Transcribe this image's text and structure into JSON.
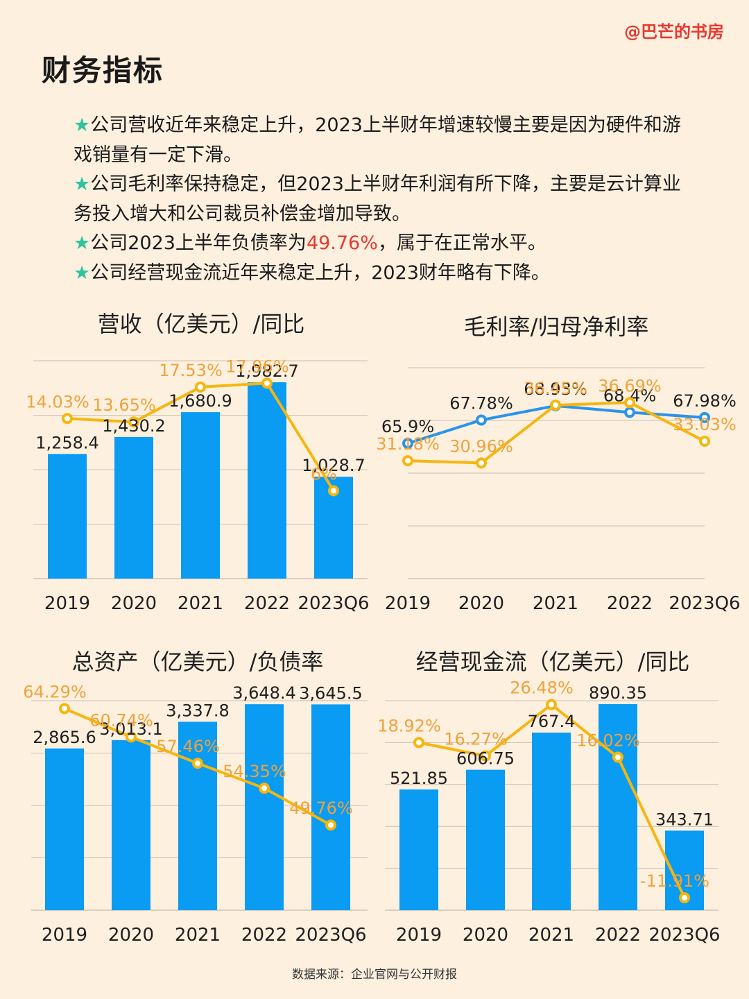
{
  "watermark": "@巴芒的书房",
  "title": "财务指标",
  "bullets": [
    {
      "star": "★",
      "pre": "公司营收近年来稳定上升，2023上半财年增速较慢主要是因为硬件和游戏销量有一定下滑。",
      "highlight": "",
      "post": ""
    },
    {
      "star": "★",
      "pre": "公司毛利率保持稳定，但2023上半财年利润有所下降，主要是云计算业务投入增大和公司裁员补偿金增加导致。",
      "highlight": "",
      "post": ""
    },
    {
      "star": "★",
      "pre": "公司2023上半年负债率为",
      "highlight": "49.76%",
      "post": "，属于在正常水平。"
    },
    {
      "star": "★",
      "pre": "公司经营现金流近年来稳定上升，2023财年略有下降。",
      "highlight": "",
      "post": ""
    }
  ],
  "colors": {
    "bar": "#0a9bf2",
    "line": "#f5b60f",
    "line_label": "#f0a23a",
    "blue_line": "#2b93ea",
    "grid": "#c9c0b4",
    "accent": "#e8382f"
  },
  "source": "数据来源：企业官网与公开财报",
  "chart_data": [
    {
      "type": "bar",
      "title": "营收（亿美元）/同比",
      "categories": [
        "2019",
        "2020",
        "2021",
        "2022",
        "2023Q6"
      ],
      "series": [
        {
          "kind": "bar",
          "values": [
            1258.4,
            1430.2,
            1680.9,
            1982.7,
            1028.7
          ],
          "labels": [
            "1,258.4",
            "1,430.2",
            "1,680.9",
            "1,982.7",
            "1,028.7"
          ]
        },
        {
          "kind": "line",
          "values": [
            14.03,
            13.65,
            17.53,
            17.96,
            6
          ],
          "labels": [
            "14.03%",
            "13.65%",
            "17.53%",
            "17.96%",
            "6%"
          ]
        }
      ]
    },
    {
      "type": "line",
      "title": "毛利率/归母净利率",
      "categories": [
        "2019",
        "2020",
        "2021",
        "2022",
        "2023Q6"
      ],
      "series": [
        {
          "kind": "line",
          "color": "#2b93ea",
          "values": [
            65.9,
            67.78,
            68.93,
            68.4,
            67.98
          ],
          "labels": [
            "65.9%",
            "67.78%",
            "68.93%",
            "68.4%",
            "67.98%"
          ]
        },
        {
          "kind": "line",
          "color": "#f5b60f",
          "values": [
            31.18,
            30.96,
            36.45,
            36.69,
            33.03
          ],
          "labels": [
            "31.18%",
            "30.96%",
            "36.45%",
            "36.69%",
            "33.03%"
          ]
        }
      ]
    },
    {
      "type": "bar",
      "title": "总资产（亿美元）/负债率",
      "categories": [
        "2019",
        "2020",
        "2021",
        "2022",
        "2023Q6"
      ],
      "series": [
        {
          "kind": "bar",
          "values": [
            2865.6,
            3013.1,
            3337.8,
            3648.4,
            3645.5
          ],
          "labels": [
            "2,865.6",
            "3,013.1",
            "3,337.8",
            "3,648.4",
            "3,645.5"
          ]
        },
        {
          "kind": "line",
          "values": [
            64.29,
            60.74,
            57.46,
            54.35,
            49.76
          ],
          "labels": [
            "64.29%",
            "60.74%",
            "57.46%",
            "54.35%",
            "49.76%"
          ]
        }
      ]
    },
    {
      "type": "bar",
      "title": "经营现金流（亿美元）/同比",
      "categories": [
        "2019",
        "2020",
        "2021",
        "2022",
        "2023Q6"
      ],
      "series": [
        {
          "kind": "bar",
          "values": [
            521.85,
            606.75,
            767.4,
            890.35,
            343.71
          ],
          "labels": [
            "521.85",
            "606.75",
            "767.4",
            "890.35",
            "343.71"
          ]
        },
        {
          "kind": "line",
          "values": [
            18.92,
            16.27,
            26.48,
            16.02,
            -11.91
          ],
          "labels": [
            "18.92%",
            "16.27%",
            "26.48%",
            "16.02%",
            "-11.91%"
          ]
        }
      ]
    }
  ]
}
